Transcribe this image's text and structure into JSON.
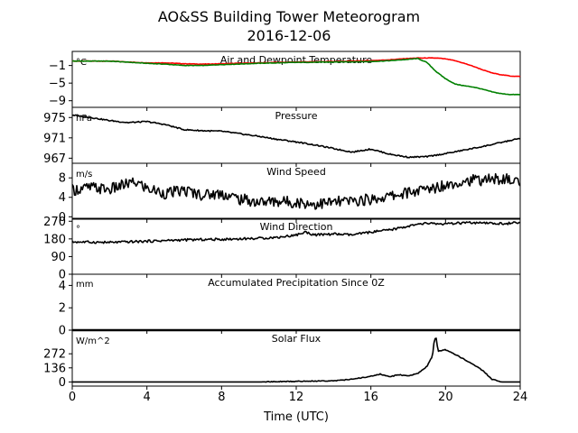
{
  "title": "AO&SS Building Tower Meteorogram",
  "subtitle": "2016-12-06",
  "xlabel": "Time (UTC)",
  "x_ticks": [
    0,
    4,
    8,
    12,
    16,
    20,
    24
  ],
  "xlim": [
    0,
    24
  ],
  "chart_data": [
    {
      "type": "line",
      "title": "Air and Dewpoint Temperature",
      "unit": "°C",
      "ylim": [
        -10.5,
        2.2
      ],
      "y_ticks": [
        -1,
        -5,
        -9
      ],
      "y_tick_labels": [
        "−1",
        "−5",
        "−9"
      ],
      "grid": false,
      "series": [
        {
          "color": "#ff0000",
          "x": [
            0,
            2,
            4,
            5,
            6,
            7,
            8,
            10,
            12,
            14,
            16,
            17,
            18,
            18.5,
            19,
            19.5,
            20,
            20.5,
            21,
            21.5,
            22,
            22.5,
            23,
            23.5,
            24
          ],
          "values": [
            0.0,
            0.0,
            -0.4,
            -0.4,
            -0.6,
            -0.7,
            -0.6,
            -0.4,
            -0.2,
            -0.1,
            0.1,
            0.3,
            0.6,
            0.7,
            0.7,
            0.7,
            0.5,
            0.1,
            -0.5,
            -1.2,
            -2.0,
            -2.7,
            -3.1,
            -3.4,
            -3.5
          ]
        },
        {
          "color": "#008000",
          "x": [
            0,
            2,
            4,
            5,
            6,
            7,
            8,
            10,
            12,
            14,
            16,
            17,
            18,
            18.5,
            19,
            19.5,
            20,
            20.5,
            21,
            21.5,
            22,
            22.5,
            23,
            23.5,
            24
          ],
          "values": [
            0.0,
            0.0,
            -0.5,
            -0.7,
            -1.0,
            -1.0,
            -0.8,
            -0.5,
            -0.3,
            -0.2,
            -0.1,
            0.1,
            0.4,
            0.6,
            -0.3,
            -2.4,
            -4.0,
            -5.2,
            -5.6,
            -5.9,
            -6.4,
            -7.0,
            -7.4,
            -7.6,
            -7.6
          ]
        }
      ]
    },
    {
      "type": "line",
      "title": "Pressure",
      "unit": "hPa",
      "ylim": [
        966,
        977
      ],
      "y_ticks": [
        975,
        971,
        967
      ],
      "grid": false,
      "series": [
        {
          "color": "#000000",
          "x": [
            0,
            1,
            2,
            3,
            4,
            5,
            6,
            7,
            8,
            9,
            10,
            11,
            12,
            13,
            14,
            15,
            16,
            17,
            18,
            19,
            20,
            21,
            22,
            23,
            24
          ],
          "values": [
            975.5,
            975.0,
            974.4,
            974.0,
            974.2,
            973.6,
            972.6,
            972.4,
            972.3,
            971.8,
            971.3,
            970.7,
            970.2,
            969.6,
            968.9,
            968.2,
            968.8,
            967.8,
            967.2,
            967.3,
            967.9,
            968.6,
            969.3,
            970.1,
            970.9
          ]
        }
      ]
    },
    {
      "type": "line",
      "title": "Wind Speed",
      "unit": "m/s",
      "ylim": [
        -0.5,
        11
      ],
      "y_ticks": [
        8,
        4,
        0
      ],
      "grid": false,
      "series": [
        {
          "color": "#000000",
          "x": [
            0,
            1,
            2,
            3,
            3.5,
            4,
            5,
            6,
            7,
            8,
            9,
            10,
            11,
            12,
            13,
            14,
            15,
            16,
            17,
            18,
            19,
            20,
            21,
            22,
            23,
            24
          ],
          "values": [
            5.5,
            6.0,
            5.6,
            6.8,
            7.0,
            5.8,
            4.8,
            5.4,
            4.5,
            4.8,
            3.6,
            3.0,
            3.2,
            3.0,
            2.6,
            3.0,
            3.2,
            3.6,
            4.2,
            5.0,
            5.6,
            6.6,
            7.4,
            7.6,
            7.8,
            7.2
          ]
        }
      ]
    },
    {
      "type": "line",
      "title": "Wind Direction",
      "unit": "°",
      "ylim": [
        0,
        285
      ],
      "y_ticks": [
        270,
        180,
        90,
        0
      ],
      "grid": false,
      "series": [
        {
          "color": "#000000",
          "x": [
            0,
            2,
            4,
            6,
            8,
            10,
            11,
            12,
            12.5,
            13,
            14,
            15,
            16,
            17,
            18,
            19,
            20,
            21,
            22,
            23,
            24
          ],
          "values": [
            165,
            162,
            168,
            175,
            178,
            183,
            188,
            200,
            215,
            200,
            205,
            200,
            215,
            225,
            245,
            260,
            255,
            262,
            260,
            258,
            262
          ]
        }
      ]
    },
    {
      "type": "line",
      "title": "Accumulated Precipitation Since 0Z",
      "unit": "mm",
      "ylim": [
        0,
        5
      ],
      "y_ticks": [
        4,
        2,
        0
      ],
      "grid": false,
      "series": [
        {
          "color": "#000000",
          "x": [
            0,
            24
          ],
          "values": [
            0,
            0
          ]
        }
      ]
    },
    {
      "type": "line",
      "title": "Solar Flux",
      "unit": "W/m^2",
      "ylim": [
        -40,
        500
      ],
      "y_ticks": [
        272,
        136,
        0
      ],
      "grid": false,
      "series": [
        {
          "color": "#000000",
          "x": [
            0,
            10,
            14,
            14.8,
            15.5,
            16,
            16.5,
            17,
            17.5,
            18,
            18.5,
            19,
            19.3,
            19.4,
            19.5,
            19.6,
            20,
            21,
            22,
            22.5,
            23,
            24
          ],
          "values": [
            0,
            0,
            12,
            22,
            40,
            55,
            75,
            50,
            70,
            60,
            80,
            150,
            250,
            410,
            420,
            300,
            310,
            220,
            110,
            25,
            0,
            0
          ]
        }
      ]
    }
  ]
}
